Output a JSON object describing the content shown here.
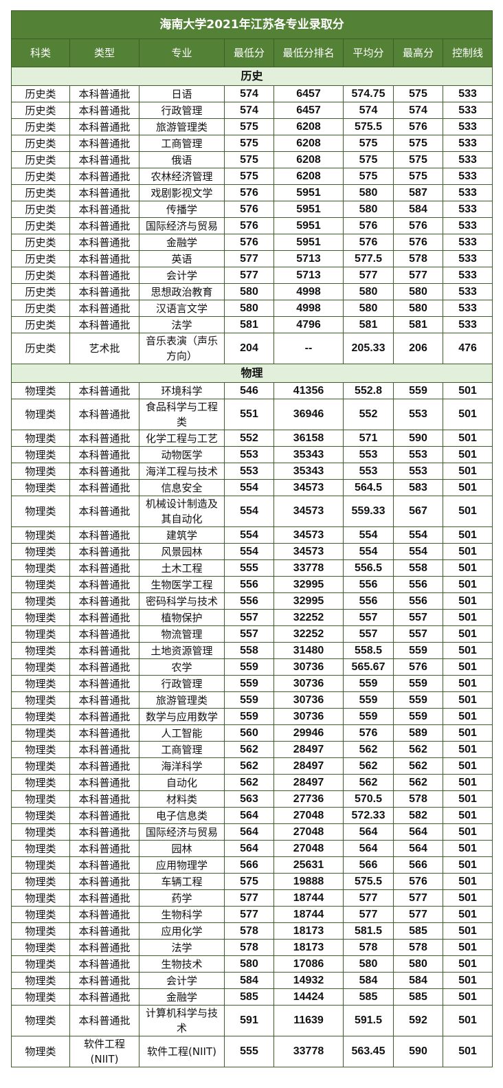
{
  "title": "海南大学2021年江苏各专业录取分",
  "headers": [
    "科类",
    "类型",
    "专业",
    "最低分",
    "最低分排名",
    "平均分",
    "最高分",
    "控制线"
  ],
  "colors": {
    "header_bg": "#538135",
    "section_bg": "#e2efda",
    "border": "#3b5e26"
  },
  "sections": [
    {
      "label": "历史",
      "rows": [
        [
          "历史类",
          "本科普通批",
          "日语",
          "574",
          "6457",
          "574.75",
          "575",
          "533"
        ],
        [
          "历史类",
          "本科普通批",
          "行政管理",
          "574",
          "6457",
          "574",
          "574",
          "533"
        ],
        [
          "历史类",
          "本科普通批",
          "旅游管理类",
          "575",
          "6208",
          "575.5",
          "576",
          "533"
        ],
        [
          "历史类",
          "本科普通批",
          "工商管理",
          "575",
          "6208",
          "575",
          "575",
          "533"
        ],
        [
          "历史类",
          "本科普通批",
          "俄语",
          "575",
          "6208",
          "575",
          "575",
          "533"
        ],
        [
          "历史类",
          "本科普通批",
          "农林经济管理",
          "575",
          "6208",
          "575",
          "575",
          "533"
        ],
        [
          "历史类",
          "本科普通批",
          "戏剧影视文学",
          "576",
          "5951",
          "580",
          "587",
          "533"
        ],
        [
          "历史类",
          "本科普通批",
          "传播学",
          "576",
          "5951",
          "580",
          "584",
          "533"
        ],
        [
          "历史类",
          "本科普通批",
          "国际经济与贸易",
          "576",
          "5951",
          "576",
          "576",
          "533"
        ],
        [
          "历史类",
          "本科普通批",
          "金融学",
          "576",
          "5951",
          "576",
          "576",
          "533"
        ],
        [
          "历史类",
          "本科普通批",
          "英语",
          "577",
          "5713",
          "577.5",
          "578",
          "533"
        ],
        [
          "历史类",
          "本科普通批",
          "会计学",
          "577",
          "5713",
          "577",
          "577",
          "533"
        ],
        [
          "历史类",
          "本科普通批",
          "思想政治教育",
          "580",
          "4998",
          "580",
          "580",
          "533"
        ],
        [
          "历史类",
          "本科普通批",
          "汉语言文学",
          "580",
          "4998",
          "580",
          "580",
          "533"
        ],
        [
          "历史类",
          "本科普通批",
          "法学",
          "581",
          "4796",
          "581",
          "581",
          "533"
        ],
        [
          "历史类",
          "艺术批",
          "音乐表演（声乐方向）",
          "204",
          "--",
          "205.33",
          "206",
          "476"
        ]
      ]
    },
    {
      "label": "物理",
      "rows": [
        [
          "物理类",
          "本科普通批",
          "环境科学",
          "546",
          "41356",
          "552.8",
          "559",
          "501"
        ],
        [
          "物理类",
          "本科普通批",
          "食品科学与工程类",
          "551",
          "36946",
          "552",
          "553",
          "501"
        ],
        [
          "物理类",
          "本科普通批",
          "化学工程与工艺",
          "552",
          "36158",
          "571",
          "590",
          "501"
        ],
        [
          "物理类",
          "本科普通批",
          "动物医学",
          "553",
          "35343",
          "553",
          "553",
          "501"
        ],
        [
          "物理类",
          "本科普通批",
          "海洋工程与技术",
          "553",
          "35343",
          "553",
          "553",
          "501"
        ],
        [
          "物理类",
          "本科普通批",
          "信息安全",
          "554",
          "34573",
          "564.5",
          "583",
          "501"
        ],
        [
          "物理类",
          "本科普通批",
          "机械设计制造及其自动化",
          "554",
          "34573",
          "559.33",
          "567",
          "501"
        ],
        [
          "物理类",
          "本科普通批",
          "建筑学",
          "554",
          "34573",
          "554",
          "554",
          "501"
        ],
        [
          "物理类",
          "本科普通批",
          "风景园林",
          "554",
          "34573",
          "554",
          "554",
          "501"
        ],
        [
          "物理类",
          "本科普通批",
          "土木工程",
          "555",
          "33778",
          "556.5",
          "558",
          "501"
        ],
        [
          "物理类",
          "本科普通批",
          "生物医学工程",
          "556",
          "32995",
          "556",
          "556",
          "501"
        ],
        [
          "物理类",
          "本科普通批",
          "密码科学与技术",
          "556",
          "32995",
          "556",
          "556",
          "501"
        ],
        [
          "物理类",
          "本科普通批",
          "植物保护",
          "557",
          "32252",
          "557",
          "557",
          "501"
        ],
        [
          "物理类",
          "本科普通批",
          "物流管理",
          "557",
          "32252",
          "557",
          "557",
          "501"
        ],
        [
          "物理类",
          "本科普通批",
          "土地资源管理",
          "558",
          "31480",
          "558.5",
          "559",
          "501"
        ],
        [
          "物理类",
          "本科普通批",
          "农学",
          "559",
          "30736",
          "565.67",
          "576",
          "501"
        ],
        [
          "物理类",
          "本科普通批",
          "行政管理",
          "559",
          "30736",
          "559",
          "559",
          "501"
        ],
        [
          "物理类",
          "本科普通批",
          "旅游管理类",
          "559",
          "30736",
          "559",
          "559",
          "501"
        ],
        [
          "物理类",
          "本科普通批",
          "数学与应用数学",
          "559",
          "30736",
          "559",
          "559",
          "501"
        ],
        [
          "物理类",
          "本科普通批",
          "人工智能",
          "560",
          "29946",
          "576",
          "589",
          "501"
        ],
        [
          "物理类",
          "本科普通批",
          "工商管理",
          "562",
          "28497",
          "562",
          "562",
          "501"
        ],
        [
          "物理类",
          "本科普通批",
          "海洋科学",
          "562",
          "28497",
          "562",
          "562",
          "501"
        ],
        [
          "物理类",
          "本科普通批",
          "自动化",
          "562",
          "28497",
          "562",
          "562",
          "501"
        ],
        [
          "物理类",
          "本科普通批",
          "材料类",
          "563",
          "27736",
          "570.5",
          "578",
          "501"
        ],
        [
          "物理类",
          "本科普通批",
          "电子信息类",
          "564",
          "27048",
          "572.33",
          "582",
          "501"
        ],
        [
          "物理类",
          "本科普通批",
          "国际经济与贸易",
          "564",
          "27048",
          "564",
          "564",
          "501"
        ],
        [
          "物理类",
          "本科普通批",
          "园林",
          "564",
          "27048",
          "564",
          "564",
          "501"
        ],
        [
          "物理类",
          "本科普通批",
          "应用物理学",
          "566",
          "25631",
          "566",
          "566",
          "501"
        ],
        [
          "物理类",
          "本科普通批",
          "车辆工程",
          "575",
          "19888",
          "575.5",
          "576",
          "501"
        ],
        [
          "物理类",
          "本科普通批",
          "药学",
          "577",
          "18744",
          "577",
          "577",
          "501"
        ],
        [
          "物理类",
          "本科普通批",
          "生物科学",
          "577",
          "18744",
          "577",
          "577",
          "501"
        ],
        [
          "物理类",
          "本科普通批",
          "应用化学",
          "578",
          "18173",
          "581.5",
          "585",
          "501"
        ],
        [
          "物理类",
          "本科普通批",
          "法学",
          "578",
          "18173",
          "578",
          "578",
          "501"
        ],
        [
          "物理类",
          "本科普通批",
          "生物技术",
          "580",
          "17086",
          "580",
          "580",
          "501"
        ],
        [
          "物理类",
          "本科普通批",
          "会计学",
          "584",
          "14932",
          "584",
          "584",
          "501"
        ],
        [
          "物理类",
          "本科普通批",
          "金融学",
          "585",
          "14424",
          "585",
          "585",
          "501"
        ],
        [
          "物理类",
          "本科普通批",
          "计算机科学与技术",
          "591",
          "11639",
          "591.5",
          "592",
          "501"
        ],
        [
          "物理类",
          "软件工程(NIIT)",
          "软件工程(NIIT)",
          "555",
          "33778",
          "563.45",
          "590",
          "501"
        ]
      ]
    }
  ]
}
